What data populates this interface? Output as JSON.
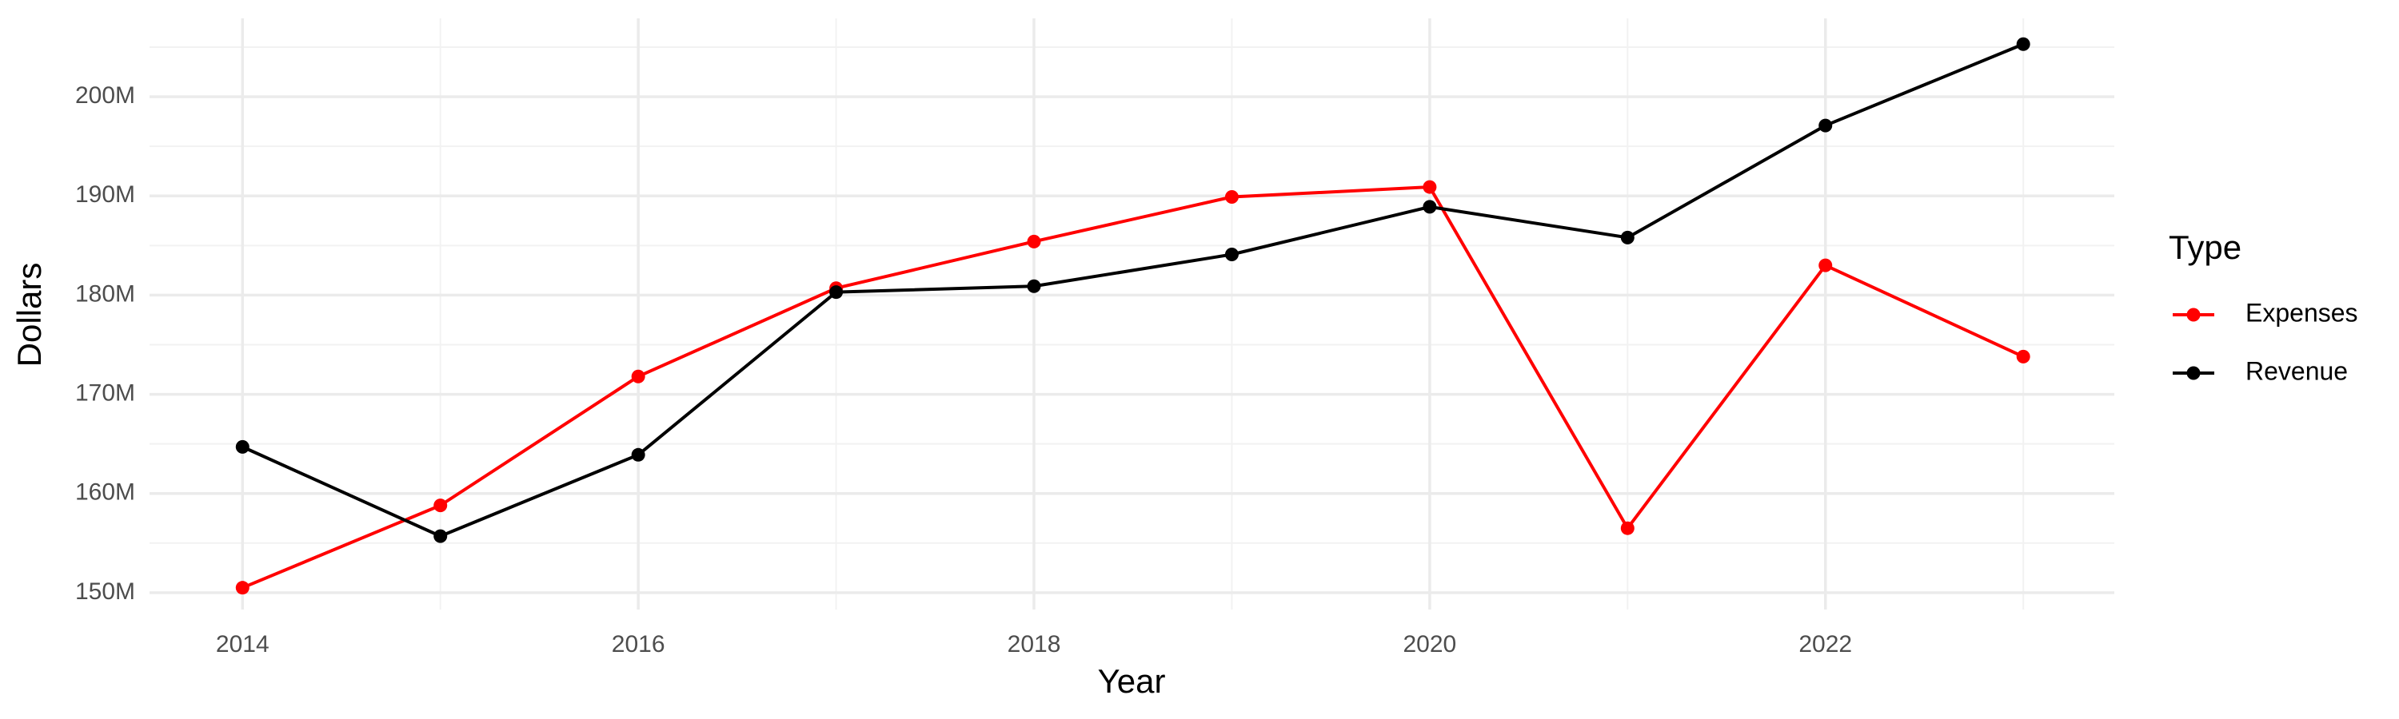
{
  "chart_data": {
    "type": "line",
    "x_label": "Year",
    "y_label": "Dollars",
    "legend_title": "Type",
    "legend": "right",
    "grid": true,
    "x": [
      2014,
      2015,
      2016,
      2017,
      2018,
      2019,
      2020,
      2021,
      2022,
      2023
    ],
    "series": [
      {
        "name": "Expenses",
        "color": "#ff0000",
        "values": [
          150500000,
          158800000,
          171800000,
          180700000,
          185400000,
          189900000,
          190900000,
          156500000,
          183000000,
          173800000
        ]
      },
      {
        "name": "Revenue",
        "color": "#000000",
        "values": [
          164700000,
          155700000,
          163900000,
          180300000,
          180900000,
          184100000,
          188900000,
          185800000,
          197100000,
          205300000
        ]
      }
    ],
    "xlim": [
      2013.53,
      2023.46
    ],
    "xticks": [
      2014,
      2016,
      2018,
      2020,
      2022
    ],
    "x_minor_ticks": [
      2015,
      2017,
      2019,
      2021,
      2023
    ],
    "ylim": [
      148300000,
      207900000
    ],
    "yticks": [
      {
        "value": 150000000,
        "label": "150M"
      },
      {
        "value": 160000000,
        "label": "160M"
      },
      {
        "value": 170000000,
        "label": "170M"
      },
      {
        "value": 180000000,
        "label": "180M"
      },
      {
        "value": 190000000,
        "label": "190M"
      },
      {
        "value": 200000000,
        "label": "200M"
      }
    ],
    "y_minor_ticks": [
      155000000,
      165000000,
      175000000,
      185000000,
      195000000,
      205000000
    ]
  }
}
